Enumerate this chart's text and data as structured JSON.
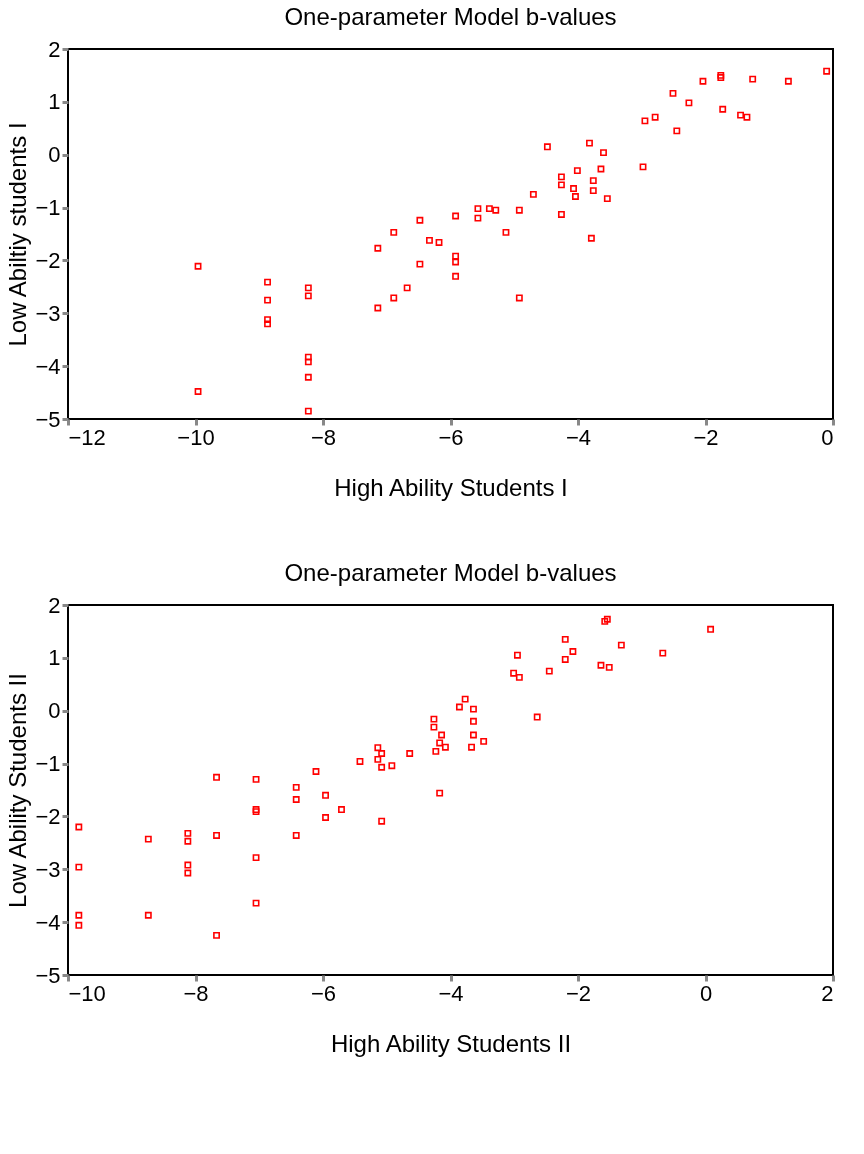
{
  "chart_data": [
    {
      "type": "scatter",
      "title": "One-parameter Model b-values",
      "xlabel": "High Ability Students I",
      "ylabel": "Low Abiltiy students I",
      "xlim": [
        -12,
        0
      ],
      "ylim": [
        -5,
        2
      ],
      "xticks": [
        -12,
        -10,
        -8,
        -6,
        -4,
        -2,
        0
      ],
      "yticks": [
        -5,
        -4,
        -3,
        -2,
        -1,
        0,
        1,
        2
      ],
      "grid": false,
      "marker": "square",
      "series": [
        {
          "color": "#ff0000",
          "x": [
            -9.96,
            -9.96,
            -8.87,
            -8.87,
            -8.87,
            -8.87,
            -8.23,
            -8.23,
            -8.23,
            -8.23,
            -8.23,
            -8.23,
            -7.14,
            -7.14,
            -6.89,
            -6.89,
            -6.68,
            -6.48,
            -6.48,
            -6.33,
            -6.18,
            -5.92,
            -5.92,
            -5.92,
            -5.92,
            -5.57,
            -5.57,
            -5.39,
            -5.29,
            -5.13,
            -4.92,
            -4.92,
            -4.7,
            -4.48,
            -4.26,
            -4.26,
            -4.26,
            -4.07,
            -4.04,
            -4.01,
            -3.82,
            -3.79,
            -3.76,
            -3.76,
            -3.64,
            -3.6,
            -3.54,
            -2.98,
            -2.95,
            -2.79,
            -2.51,
            -2.45,
            -2.26,
            -2.04,
            -1.76,
            -1.76,
            -1.73,
            -1.45,
            -1.35,
            -1.26,
            -0.7,
            -0.1
          ],
          "values": [
            -2.11,
            -4.48,
            -2.41,
            -2.75,
            -3.12,
            -3.2,
            -2.52,
            -2.67,
            -3.83,
            -3.92,
            -4.21,
            -4.85,
            -1.77,
            -2.9,
            -1.47,
            -2.71,
            -2.52,
            -1.24,
            -2.07,
            -1.62,
            -1.66,
            -1.16,
            -1.92,
            -2.03,
            -2.3,
            -1.02,
            -1.2,
            -1.02,
            -1.05,
            -1.47,
            -1.05,
            -2.71,
            -0.75,
            0.15,
            -0.42,
            -0.57,
            -1.13,
            -0.64,
            -0.79,
            -0.3,
            0.22,
            -1.58,
            -0.49,
            -0.68,
            -0.27,
            0.04,
            -0.83,
            -0.23,
            0.64,
            0.71,
            1.16,
            0.45,
            0.98,
            1.39,
            1.5,
            1.46,
            0.86,
            0.75,
            0.71,
            1.43,
            1.39,
            1.58
          ]
        }
      ]
    },
    {
      "type": "scatter",
      "title": "One-parameter Model b-values",
      "xlabel": "High Ability Students II",
      "ylabel": "Low Ability Students II",
      "xlim": [
        -10,
        2
      ],
      "ylim": [
        -5,
        2
      ],
      "xticks": [
        -10,
        -8,
        -6,
        -4,
        -2,
        0,
        2
      ],
      "yticks": [
        -5,
        -4,
        -3,
        -2,
        -1,
        0,
        1,
        2
      ],
      "grid": false,
      "marker": "square",
      "series": [
        {
          "color": "#ff0000",
          "x": [
            -9.83,
            -9.83,
            -9.83,
            -9.83,
            -8.74,
            -8.74,
            -8.12,
            -8.12,
            -8.12,
            -8.12,
            -7.67,
            -7.67,
            -7.67,
            -7.05,
            -7.05,
            -7.05,
            -7.05,
            -7.05,
            -6.42,
            -6.42,
            -6.42,
            -6.11,
            -5.96,
            -5.96,
            -5.71,
            -5.42,
            -5.14,
            -5.14,
            -5.08,
            -5.08,
            -5.08,
            -4.92,
            -4.64,
            -4.26,
            -4.26,
            -4.23,
            -4.17,
            -4.14,
            -4.08,
            -4.17,
            -3.86,
            -3.77,
            -3.64,
            -3.64,
            -3.64,
            -3.67,
            -3.48,
            -3.01,
            -2.95,
            -2.92,
            -2.64,
            -2.45,
            -2.2,
            -2.2,
            -2.08,
            -1.64,
            -1.51,
            -1.58,
            -1.54,
            -1.32,
            -0.67,
            0.08
          ],
          "values": [
            -2.2,
            -2.96,
            -3.87,
            -4.06,
            -2.43,
            -3.87,
            -2.32,
            -2.47,
            -2.92,
            -3.07,
            -1.26,
            -2.36,
            -4.25,
            -1.3,
            -1.87,
            -1.91,
            -2.78,
            -3.64,
            -1.45,
            -1.68,
            -2.36,
            -1.15,
            -1.6,
            -2.02,
            -1.87,
            -0.96,
            -0.7,
            -0.92,
            -0.81,
            -1.07,
            -2.09,
            -1.04,
            -0.81,
            -0.16,
            -0.31,
            -0.77,
            -0.61,
            -0.46,
            -0.69,
            -1.56,
            0.07,
            0.22,
            0.03,
            -0.2,
            -0.46,
            -0.69,
            -0.58,
            0.71,
            1.05,
            0.63,
            -0.12,
            0.75,
            1.35,
            0.97,
            1.12,
            0.86,
            0.82,
            1.69,
            1.73,
            1.24,
            1.09,
            1.54
          ]
        }
      ]
    }
  ]
}
